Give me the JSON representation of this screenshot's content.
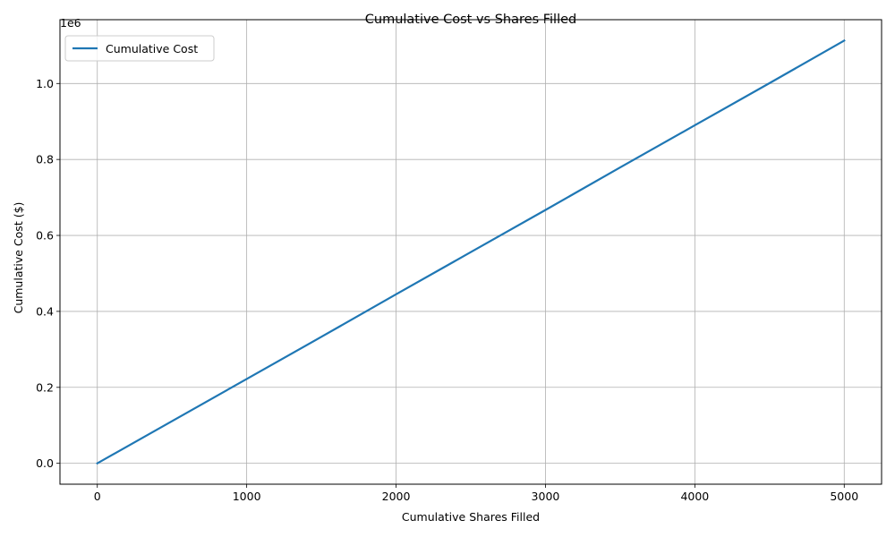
{
  "chart_data": {
    "type": "line",
    "title": "Cumulative Cost vs Shares Filled",
    "xlabel": "Cumulative Shares Filled",
    "ylabel": "Cumulative Cost ($)",
    "y_offset_label": "1e6",
    "xlim": [
      -250,
      5250
    ],
    "ylim": [
      -55000,
      1168000
    ],
    "x_scale": "linear",
    "y_scale": "linear",
    "grid": true,
    "legend_position": "top-left",
    "x_ticks": [
      0,
      1000,
      2000,
      3000,
      4000,
      5000
    ],
    "x_tick_labels": [
      "0",
      "1000",
      "2000",
      "3000",
      "4000",
      "5000"
    ],
    "y_ticks": [
      0,
      200000,
      400000,
      600000,
      800000,
      1000000
    ],
    "y_tick_labels": [
      "0.0",
      "0.2",
      "0.4",
      "0.6",
      "0.8",
      "1.0"
    ],
    "series": [
      {
        "name": "Cumulative Cost",
        "color": "#1f77b4",
        "x": [
          0,
          500,
          1000,
          1500,
          2000,
          2500,
          3000,
          3500,
          4000,
          4500,
          5000
        ],
        "y": [
          0,
          111000,
          222000,
          333000,
          445000,
          556000,
          667000,
          779000,
          890000,
          1001000,
          1113000
        ]
      }
    ]
  },
  "colors": {
    "grid": "#b0b0b0",
    "axis": "#000000",
    "legend_border": "#cccccc"
  }
}
